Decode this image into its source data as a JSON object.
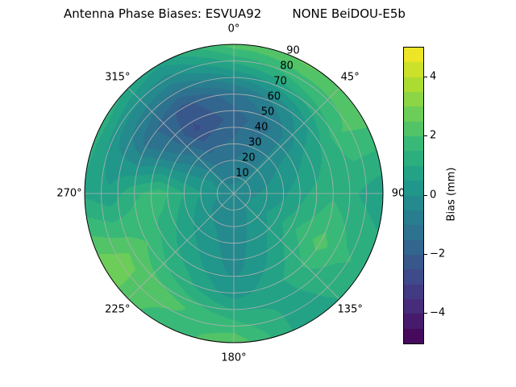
{
  "title": "Antenna Phase Biases: ESVUA92        NONE BeiDOU-E5b",
  "chart_data": {
    "type": "polar_contour",
    "title": "Antenna Phase Biases: ESVUA92        NONE BeiDOU-E5b",
    "angular_tick_labels": [
      "0°",
      "45°",
      "90",
      "135°",
      "180°",
      "225°",
      "270°",
      "315°"
    ],
    "angular_tick_deg": [
      0,
      45,
      90,
      135,
      180,
      225,
      270,
      315
    ],
    "radial_tick_labels": [
      "10",
      "20",
      "30",
      "40",
      "50",
      "60",
      "70",
      "80",
      "90"
    ],
    "radial_tick_values": [
      10,
      20,
      30,
      40,
      50,
      60,
      70,
      80,
      90
    ],
    "radial_label_azimuth_deg": 22.5,
    "radial_max": 90,
    "azimuth_deg": [
      0,
      30,
      60,
      90,
      120,
      150,
      180,
      210,
      240,
      270,
      300,
      330,
      360
    ],
    "zenith_deg": [
      0,
      15,
      30,
      45,
      60,
      75,
      90
    ],
    "bias_mm": [
      [
        -0.3,
        -0.3,
        -0.3,
        -0.3,
        -0.3,
        -0.3,
        -0.3,
        -0.3,
        -0.3,
        -0.3,
        -0.3,
        -0.3,
        -0.3
      ],
      [
        -0.8,
        -0.6,
        -0.3,
        0.0,
        0.2,
        0.0,
        -0.3,
        -0.2,
        0.0,
        0.3,
        0.0,
        -0.8,
        -0.8
      ],
      [
        -1.4,
        -0.8,
        0.0,
        0.4,
        0.8,
        0.3,
        -0.3,
        0.2,
        0.6,
        1.0,
        -0.3,
        -1.6,
        -1.4
      ],
      [
        -1.8,
        -1.0,
        0.4,
        1.0,
        1.6,
        0.6,
        -0.2,
        0.6,
        1.2,
        1.8,
        -0.8,
        -2.6,
        -1.8
      ],
      [
        -1.2,
        -0.2,
        1.0,
        1.4,
        2.2,
        1.0,
        0.2,
        1.2,
        2.0,
        1.4,
        -1.2,
        -2.2,
        -1.2
      ],
      [
        0.6,
        1.4,
        2.0,
        1.0,
        1.6,
        0.8,
        1.4,
        2.2,
        2.6,
        0.6,
        -0.2,
        -0.6,
        0.6
      ],
      [
        2.3,
        2.6,
        2.2,
        0.6,
        1.4,
        0.6,
        2.4,
        1.6,
        2.9,
        0.9,
        1.3,
        0.6,
        2.3
      ]
    ],
    "vmin": -5,
    "vmax": 5,
    "level_step": 0.5,
    "colormap": "viridis",
    "colormap_stops": [
      "#440154",
      "#482878",
      "#3e4989",
      "#31688e",
      "#26828e",
      "#1f9e89",
      "#35b779",
      "#6ece58",
      "#b5de2b",
      "#fde725"
    ],
    "grid_color": "#b0b0b0",
    "spine_color": "#000000",
    "colorbar": {
      "label": "Bias (mm)",
      "tick_labels": [
        "−4",
        "−2",
        "0",
        "2",
        "4"
      ],
      "tick_values": [
        -4,
        -2,
        0,
        2,
        4
      ]
    }
  }
}
